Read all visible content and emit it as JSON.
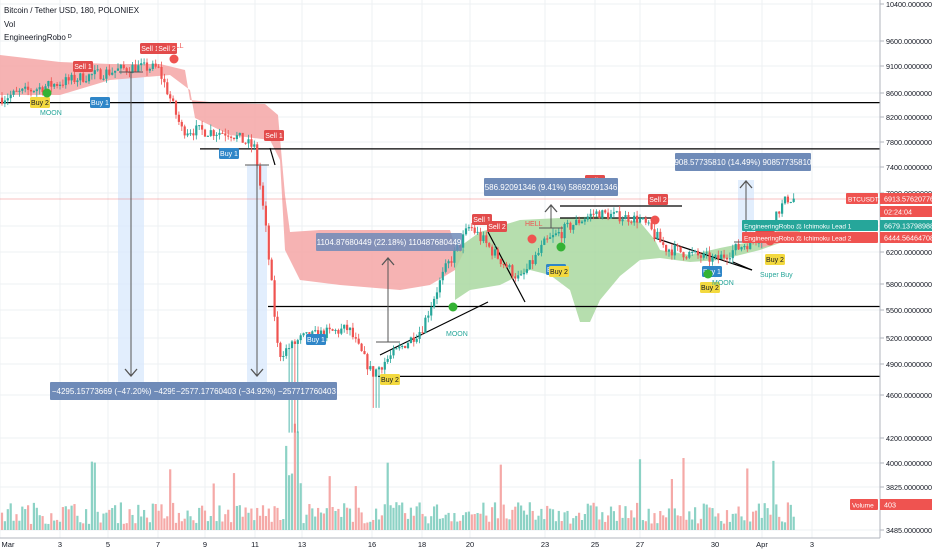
{
  "header": {
    "symbol_title": "Bitcoin / Tether USD, 180, POLONIEX",
    "volume_label": "Vol",
    "indicator_label": "EngineeringRobo ᴰ"
  },
  "colors": {
    "up": "#26a69a",
    "down": "#ef5350",
    "cloud_bear": "#f5a6a6",
    "cloud_bull": "#a9d8a0",
    "measure_box": "#6f8bb8",
    "buy_tag": "#2f86c8",
    "sell_tag": "#e24b4b",
    "yellow_tag": "#f3d93f",
    "ruler_fill": "#dbeafd"
  },
  "chart_data": {
    "type": "candlestick",
    "title": "Bitcoin / Tether USD, 180, POLONIEX",
    "y_axis": {
      "ticks": [
        3485,
        3825,
        4000,
        4200,
        4600,
        4900,
        5200,
        5500,
        5800,
        6200,
        6500,
        7000,
        7400,
        7800,
        8200,
        8600,
        9100,
        9600,
        10400
      ],
      "tick_labels": [
        "3485.000000000",
        "3825.000000000",
        "4000.000000000",
        "4200.000000000",
        "4600.000000000",
        "4900.000000000",
        "5200.000000000",
        "5500.000000000",
        "5800.000000000",
        "6200.000000000",
        "6500.000000000",
        "7000.000000000",
        "7400.000000000",
        "7800.000000000",
        "8200.000000000",
        "8600.000000000",
        "9100.000000000",
        "9600.000000000",
        "10400.000000000"
      ]
    },
    "x_axis": {
      "ticks": [
        "Mar",
        "3",
        "5",
        "7",
        "9",
        "11",
        "13",
        "16",
        "18",
        "20",
        "23",
        "25",
        "27",
        "30",
        "Apr",
        "3"
      ]
    },
    "price_anchors": [
      {
        "date": "Mar 1",
        "close": 8550
      },
      {
        "date": "Mar 4",
        "close": 8900
      },
      {
        "date": "Mar 6",
        "close": 9080
      },
      {
        "date": "Mar 7",
        "close": 9060
      },
      {
        "date": "Mar 8",
        "close": 8000
      },
      {
        "date": "Mar 10",
        "close": 7950
      },
      {
        "date": "Mar 11",
        "close": 7700
      },
      {
        "date": "Mar 12",
        "close": 5000
      },
      {
        "date": "Mar 13",
        "close": 5200
      },
      {
        "date": "Mar 15",
        "close": 5300
      },
      {
        "date": "Mar 16",
        "close": 4800
      },
      {
        "date": "Mar 18",
        "close": 5300
      },
      {
        "date": "Mar 19",
        "close": 6000
      },
      {
        "date": "Mar 20",
        "close": 6500
      },
      {
        "date": "Mar 22",
        "close": 5850
      },
      {
        "date": "Mar 23",
        "close": 6300
      },
      {
        "date": "Mar 25",
        "close": 6700
      },
      {
        "date": "Mar 27",
        "close": 6600
      },
      {
        "date": "Mar 28",
        "close": 6250
      },
      {
        "date": "Mar 30",
        "close": 6100
      },
      {
        "date": "Apr 1",
        "close": 6400
      },
      {
        "date": "Apr 2",
        "close": 6913.57
      }
    ],
    "horizontal_levels": [
      8440,
      7690,
      5540,
      4780
    ],
    "measures": [
      {
        "label": "−4295.15773669 (−47.20%) −4295"
      },
      {
        "label": "−2577.17760403 (−34.92%) −257717760403"
      },
      {
        "label": "1104.87680449 (22.18%) 110487680449"
      },
      {
        "label": "586.92091346 (9.41%) 58692091346"
      },
      {
        "label": "908.57735810 (14.49%) 90857735810"
      }
    ],
    "signals": [
      {
        "text": "Sell 1"
      },
      {
        "text": "Sell 2"
      },
      {
        "text": "Sell 1"
      },
      {
        "text": "Sell 1"
      },
      {
        "text": "Sell 1"
      },
      {
        "text": "Sell 1"
      },
      {
        "text": "Sell 2"
      },
      {
        "text": "Sell 2"
      },
      {
        "text": "Sell 1"
      },
      {
        "text": "Buy 1"
      },
      {
        "text": "Buy 1"
      },
      {
        "text": "Buy 1"
      },
      {
        "text": "Buy 1"
      },
      {
        "text": "Buy 1"
      },
      {
        "text": "Buy 2"
      },
      {
        "text": "Buy 2"
      },
      {
        "text": "Buy 2"
      },
      {
        "text": "Buy 2"
      },
      {
        "text": "Buy 2"
      }
    ],
    "annotations": [
      {
        "text": "MOON"
      },
      {
        "text": "MOON"
      },
      {
        "text": "MOON"
      },
      {
        "text": "HELL"
      },
      {
        "text": "HELL"
      },
      {
        "text": "Super Buy"
      }
    ],
    "price_labels": [
      {
        "text": "BTCUSDT",
        "value": "6913.57620776"
      },
      {
        "text": "",
        "value": "02:24:04"
      },
      {
        "text": "EngineeringRobo ⚖ Ichimoku Lead 1",
        "value": "6679.13798988"
      },
      {
        "text": "EngineeringRobo ⚖ Ichimoku Lead 2",
        "value": "6444.56464708"
      },
      {
        "text": "Volume",
        "value": "403"
      }
    ]
  }
}
